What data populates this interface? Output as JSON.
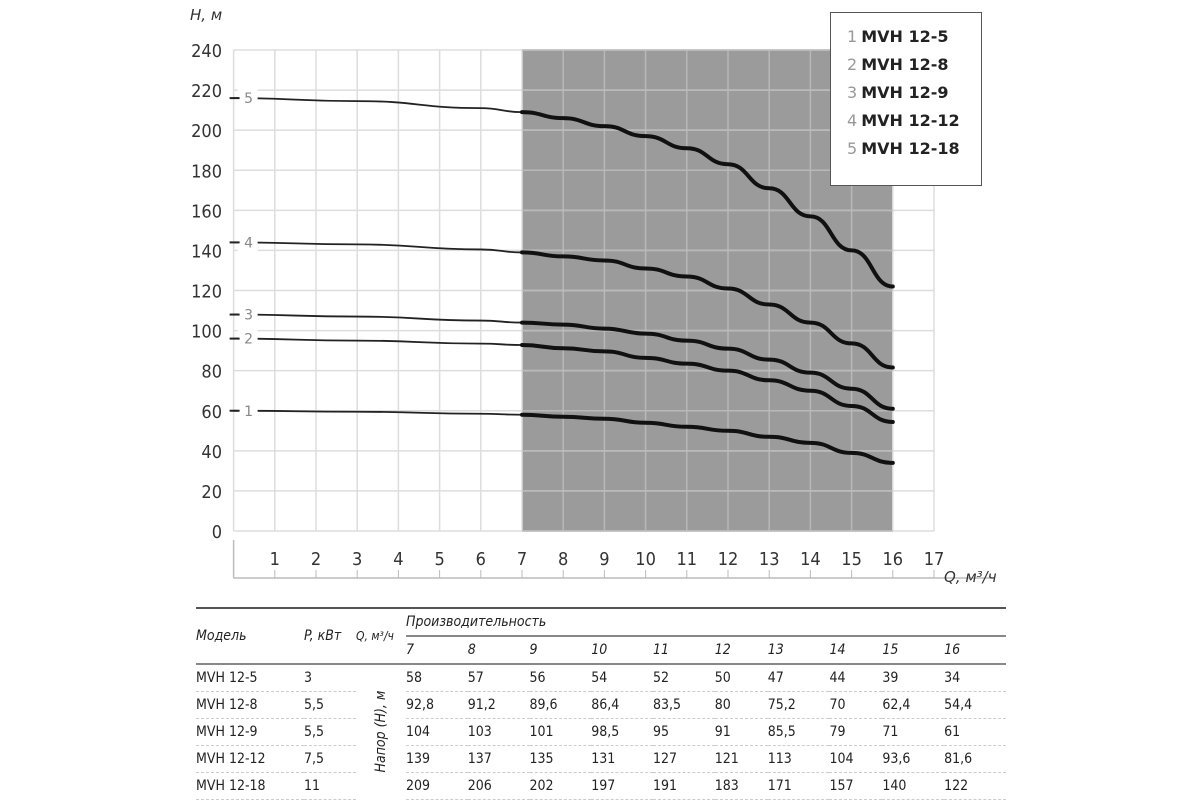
{
  "chart_data": {
    "type": "line",
    "ylabel": "H, м",
    "xlabel": "Q, м³/ч",
    "xlim": [
      0,
      17
    ],
    "ylim": [
      0,
      240
    ],
    "xticks": [
      "1",
      "2",
      "3",
      "4",
      "5",
      "6",
      "7",
      "8",
      "9",
      "10",
      "11",
      "12",
      "13",
      "14",
      "15",
      "16",
      "17"
    ],
    "yticks": [
      "0",
      "20",
      "40",
      "60",
      "80",
      "100",
      "120",
      "140",
      "160",
      "180",
      "200",
      "220",
      "240"
    ],
    "grid": true,
    "highlight_range": [
      7,
      16
    ],
    "legend_position": "top-right",
    "legend": [
      {
        "num": "1",
        "name": "MVH 12-5"
      },
      {
        "num": "2",
        "name": "MVH 12-8"
      },
      {
        "num": "3",
        "name": "MVH 12-9"
      },
      {
        "num": "4",
        "name": "MVH 12-12"
      },
      {
        "num": "5",
        "name": "MVH 12-18"
      }
    ],
    "x": [
      0,
      3,
      6,
      7,
      8,
      9,
      10,
      11,
      12,
      13,
      14,
      15,
      16
    ],
    "series": [
      {
        "label": "1",
        "name": "MVH 12-5",
        "values": [
          60,
          59.5,
          58.5,
          58,
          57,
          56,
          54,
          52,
          50,
          47,
          44,
          39,
          34
        ]
      },
      {
        "label": "2",
        "name": "MVH 12-8",
        "values": [
          96,
          95,
          93.5,
          92.8,
          91.2,
          89.6,
          86.4,
          83.5,
          80,
          75.2,
          70,
          62.4,
          54.4
        ]
      },
      {
        "label": "3",
        "name": "MVH 12-9",
        "values": [
          108,
          107,
          105,
          104,
          103,
          101,
          98.5,
          95,
          91,
          85.5,
          79,
          71,
          61
        ]
      },
      {
        "label": "4",
        "name": "MVH 12-12",
        "values": [
          144,
          143,
          140.5,
          139,
          137,
          135,
          131,
          127,
          121,
          113,
          104,
          93.6,
          81.6
        ]
      },
      {
        "label": "5",
        "name": "MVH 12-18",
        "values": [
          216,
          214.5,
          211,
          209,
          206,
          202,
          197,
          191,
          183,
          171,
          157,
          140,
          122
        ]
      }
    ]
  },
  "table": {
    "headers": {
      "model": "Модель",
      "power": "P, кВт",
      "q": "Q, м³/ч",
      "perf": "Производительность",
      "head": "Напор (H), м"
    },
    "q_values": [
      "7",
      "8",
      "9",
      "10",
      "11",
      "12",
      "13",
      "14",
      "15",
      "16"
    ],
    "rows": [
      {
        "model": "MVH 12-5",
        "power": "3",
        "values": [
          "58",
          "57",
          "56",
          "54",
          "52",
          "50",
          "47",
          "44",
          "39",
          "34"
        ]
      },
      {
        "model": "MVH 12-8",
        "power": "5,5",
        "values": [
          "92,8",
          "91,2",
          "89,6",
          "86,4",
          "83,5",
          "80",
          "75,2",
          "70",
          "62,4",
          "54,4"
        ]
      },
      {
        "model": "MVH 12-9",
        "power": "5,5",
        "values": [
          "104",
          "103",
          "101",
          "98,5",
          "95",
          "91",
          "85,5",
          "79",
          "71",
          "61"
        ]
      },
      {
        "model": "MVH 12-12",
        "power": "7,5",
        "values": [
          "139",
          "137",
          "135",
          "131",
          "127",
          "121",
          "113",
          "104",
          "93,6",
          "81,6"
        ]
      },
      {
        "model": "MVH 12-18",
        "power": "11",
        "values": [
          "209",
          "206",
          "202",
          "197",
          "191",
          "183",
          "171",
          "157",
          "140",
          "122"
        ]
      }
    ]
  }
}
